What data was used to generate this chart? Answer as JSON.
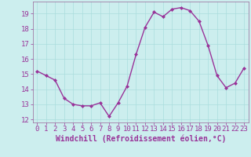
{
  "x": [
    0,
    1,
    2,
    3,
    4,
    5,
    6,
    7,
    8,
    9,
    10,
    11,
    12,
    13,
    14,
    15,
    16,
    17,
    18,
    19,
    20,
    21,
    22,
    23
  ],
  "y": [
    15.2,
    14.9,
    14.6,
    13.4,
    13.0,
    12.9,
    12.9,
    13.1,
    12.2,
    13.1,
    14.2,
    16.3,
    18.1,
    19.1,
    18.8,
    19.3,
    19.4,
    19.2,
    18.5,
    16.9,
    14.9,
    14.1,
    14.4,
    15.4
  ],
  "line_color": "#993399",
  "marker": "D",
  "marker_size": 2,
  "bg_color": "#cceeee",
  "grid_color": "#aadddd",
  "xlabel": "Windchill (Refroidissement éolien,°C)",
  "xlabel_color": "#993399",
  "tick_color": "#993399",
  "axis_color": "#996699",
  "ylim": [
    11.8,
    19.8
  ],
  "xlim": [
    -0.5,
    23.5
  ],
  "yticks": [
    12,
    13,
    14,
    15,
    16,
    17,
    18,
    19
  ],
  "xticks": [
    0,
    1,
    2,
    3,
    4,
    5,
    6,
    7,
    8,
    9,
    10,
    11,
    12,
    13,
    14,
    15,
    16,
    17,
    18,
    19,
    20,
    21,
    22,
    23
  ],
  "font_size": 6.5,
  "xlabel_font_size": 7,
  "line_width": 1.0
}
